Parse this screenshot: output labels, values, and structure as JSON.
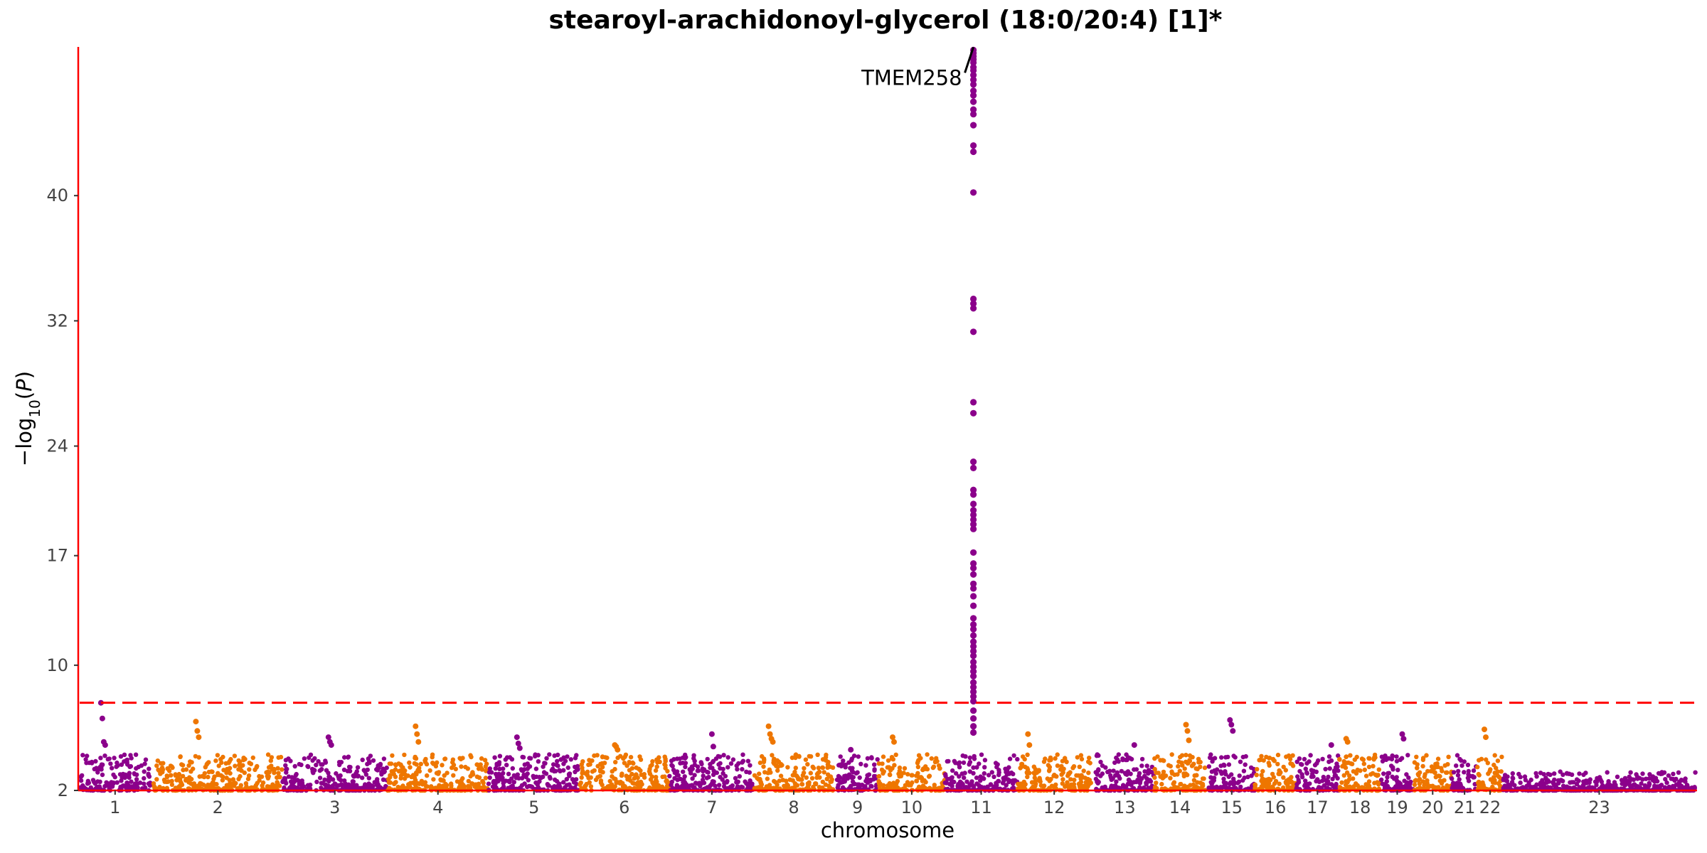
{
  "chart_data": {
    "type": "scatter",
    "title": "stearoyl-arachidonoyl-glycerol (18:0/20:4) [1]*",
    "xlabel": "chromosome",
    "ylabel": "−log10(P)",
    "ylim": [
      2,
      49.5
    ],
    "yticks": [
      2,
      10,
      17,
      24,
      32,
      40
    ],
    "threshold": 7.6,
    "grid": false,
    "legend": "none",
    "colors": {
      "odd": "#8B008B",
      "even": "#EE7600",
      "threshold": "#FF0000",
      "axis": "#FF0000"
    },
    "chromosomes": [
      {
        "label": "1",
        "start": 0,
        "end": 100
      },
      {
        "label": "2",
        "start": 104,
        "end": 286
      },
      {
        "label": "3",
        "start": 286,
        "end": 434
      },
      {
        "label": "4",
        "start": 434,
        "end": 577
      },
      {
        "label": "5",
        "start": 577,
        "end": 705
      },
      {
        "label": "6",
        "start": 705,
        "end": 832
      },
      {
        "label": "7",
        "start": 832,
        "end": 952
      },
      {
        "label": "8",
        "start": 952,
        "end": 1063
      },
      {
        "label": "9",
        "start": 1068,
        "end": 1127
      },
      {
        "label": "10",
        "start": 1127,
        "end": 1221
      },
      {
        "label": "11",
        "start": 1221,
        "end": 1323
      },
      {
        "label": "12",
        "start": 1323,
        "end": 1427
      },
      {
        "label": "13",
        "start": 1433,
        "end": 1516
      },
      {
        "label": "14",
        "start": 1516,
        "end": 1589
      },
      {
        "label": "15",
        "start": 1593,
        "end": 1658
      },
      {
        "label": "16",
        "start": 1658,
        "end": 1716
      },
      {
        "label": "17",
        "start": 1716,
        "end": 1777
      },
      {
        "label": "18",
        "start": 1777,
        "end": 1836
      },
      {
        "label": "19",
        "start": 1836,
        "end": 1882
      },
      {
        "label": "20",
        "start": 1882,
        "end": 1936
      },
      {
        "label": "21",
        "start": 1936,
        "end": 1972
      },
      {
        "label": "22",
        "start": 1972,
        "end": 2008
      },
      {
        "label": "23",
        "start": 2008,
        "end": 2280
      }
    ],
    "top_hits": [
      {
        "label": "1",
        "pos": 30,
        "values": [
          7.6,
          6.6,
          5.1,
          4.9
        ]
      },
      {
        "label": "2",
        "pos": 60,
        "values": [
          6.4,
          5.8,
          5.4
        ]
      },
      {
        "label": "3",
        "pos": 65,
        "values": [
          5.4,
          5.1,
          4.9
        ]
      },
      {
        "label": "4",
        "pos": 40,
        "values": [
          6.1,
          5.6,
          5.1
        ]
      },
      {
        "label": "5",
        "pos": 40,
        "values": [
          5.4,
          5.0,
          4.7
        ]
      },
      {
        "label": "6",
        "pos": 50,
        "values": [
          4.9,
          4.8,
          4.6
        ]
      },
      {
        "label": "7",
        "pos": 60,
        "values": [
          5.6,
          4.8
        ]
      },
      {
        "label": "8",
        "pos": 20,
        "values": [
          6.1,
          5.6,
          5.3,
          5.1
        ]
      },
      {
        "label": "9",
        "pos": 20,
        "values": [
          4.6
        ]
      },
      {
        "label": "10",
        "pos": 20,
        "values": [
          5.4,
          5.1
        ]
      },
      {
        "label": "12",
        "pos": 15,
        "values": [
          5.6,
          4.9
        ]
      },
      {
        "label": "13",
        "pos": 55,
        "values": [
          4.9
        ]
      },
      {
        "label": "14",
        "pos": 45,
        "values": [
          6.2,
          5.8,
          5.2
        ]
      },
      {
        "label": "15",
        "pos": 30,
        "values": [
          6.5,
          6.2,
          5.8
        ]
      },
      {
        "label": "17",
        "pos": 50,
        "values": [
          4.9
        ]
      },
      {
        "label": "18",
        "pos": 10,
        "values": [
          5.3,
          5.1
        ]
      },
      {
        "label": "19",
        "pos": 30,
        "values": [
          5.6,
          5.3
        ]
      },
      {
        "label": "22",
        "pos": 10,
        "values": [
          5.9,
          5.4
        ]
      }
    ],
    "peak": {
      "label": "11",
      "pos": 40,
      "values": [
        49.3,
        49.1,
        48.9,
        48.7,
        48.5,
        48.2,
        48.0,
        47.7,
        47.4,
        47.1,
        46.7,
        46.4,
        46.0,
        45.5,
        45.2,
        44.5,
        43.2,
        42.8,
        40.2,
        33.4,
        33.1,
        32.8,
        31.3,
        26.8,
        26.1,
        23.0,
        22.6,
        21.2,
        20.9,
        20.3,
        19.9,
        19.6,
        19.3,
        19.0,
        18.7,
        17.2,
        16.5,
        16.2,
        15.8,
        15.2,
        14.9,
        14.4,
        13.8,
        13.0,
        12.6,
        12.3,
        11.9,
        11.5,
        11.2,
        10.9,
        10.6,
        10.2,
        9.9,
        9.6,
        9.3,
        8.9,
        8.6,
        8.3,
        8.0,
        7.7,
        7.1,
        6.6,
        6.1,
        5.7
      ],
      "annotation": "TMEM258"
    }
  }
}
